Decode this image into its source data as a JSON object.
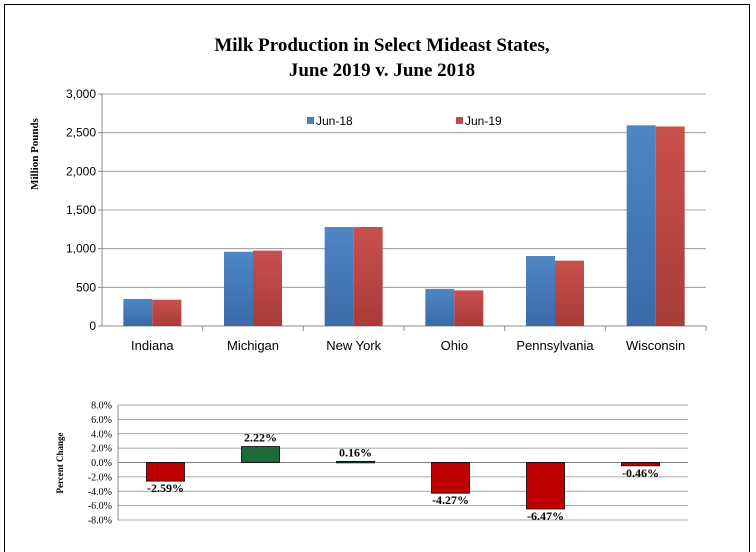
{
  "chart_data": [
    {
      "type": "bar",
      "title": "Milk Production in Select Mideast States,",
      "subtitle": "June 2019 v. June 2018",
      "xlabel": "",
      "ylabel": "Million Pounds",
      "categories": [
        "Indiana",
        "Michigan",
        "New York",
        "Ohio",
        "Pennsylvania",
        "Wisconsin"
      ],
      "series": [
        {
          "name": "Jun-18",
          "color": "#4a7ebb",
          "values": [
            350,
            960,
            1280,
            480,
            905,
            2595
          ]
        },
        {
          "name": "Jun-19",
          "color": "#be4b48",
          "values": [
            340,
            975,
            1280,
            460,
            845,
            2580
          ]
        }
      ],
      "ylim": [
        0,
        3000
      ],
      "yticks": [
        0,
        500,
        1000,
        1500,
        2000,
        2500,
        3000
      ],
      "ytick_labels": [
        "0",
        "500",
        "1,000",
        "1,500",
        "2,000",
        "2,500",
        "3,000"
      ],
      "grid": true,
      "legend": "top"
    },
    {
      "type": "bar",
      "title": "",
      "xlabel": "",
      "ylabel": "Percent Change",
      "categories": [
        "Indiana",
        "Michigan",
        "New York",
        "Ohio",
        "Pennsylvania",
        "Wisconsin"
      ],
      "values": [
        -2.59,
        2.22,
        0.16,
        -4.27,
        -6.47,
        -0.46
      ],
      "data_labels": [
        "-2.59%",
        "2.22%",
        "0.16%",
        "-4.27%",
        "-6.47%",
        "-0.46%"
      ],
      "ylim": [
        -8,
        8
      ],
      "yticks": [
        -8,
        -6,
        -4,
        -2,
        0,
        2,
        4,
        6,
        8
      ],
      "ytick_labels": [
        "-8.0%",
        "-6.0%",
        "-4.0%",
        "-2.0%",
        "0.0%",
        "2.0%",
        "4.0%",
        "6.0%",
        "8.0%"
      ],
      "positive_color": "#1e6b3a",
      "negative_color": "#c00000",
      "grid": true
    }
  ]
}
